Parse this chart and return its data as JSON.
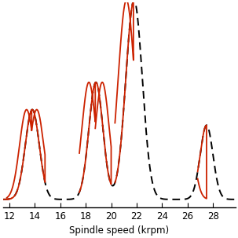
{
  "xlabel": "Spindle speed (krpm)",
  "xlim": [
    11.5,
    29.8
  ],
  "ylim": [
    0.0,
    1.05
  ],
  "xticks": [
    12,
    14,
    16,
    18,
    20,
    22,
    24,
    26,
    28
  ],
  "dashed_color": "#000000",
  "red_color": "#cc2200",
  "background_color": "#ffffff",
  "figsize": [
    3.03,
    3.03
  ],
  "dpi": 100
}
